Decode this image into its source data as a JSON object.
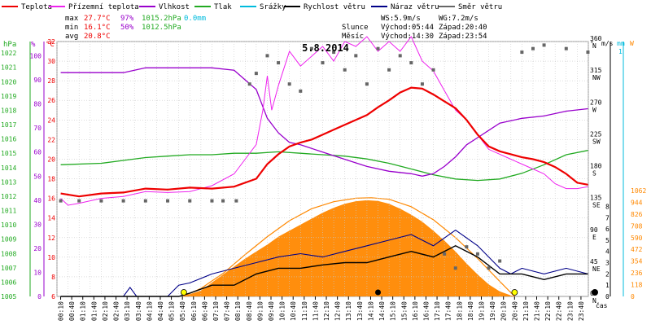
{
  "chart_data": {
    "type": "line",
    "title": "5.8.2014",
    "legend": [
      {
        "name": "Teplota",
        "color": "#ee0000"
      },
      {
        "name": "Přízemní teplota",
        "color": "#ee22ee"
      },
      {
        "name": "Vlhkost",
        "color": "#9900cc"
      },
      {
        "name": "Tlak",
        "color": "#22aa22"
      },
      {
        "name": "Srážky",
        "color": "#00bbdd"
      },
      {
        "name": "Rychlost větru",
        "color": "#000000"
      },
      {
        "name": "Náraz větru",
        "color": "#000088"
      },
      {
        "name": "Směr větru",
        "color": "#666666"
      }
    ],
    "stats": {
      "max": {
        "label": "max",
        "temp": "27.7°C",
        "hum": "97%",
        "press": "1015.2hPa",
        "rain": "0.0mm"
      },
      "min": {
        "label": "min",
        "temp": "16.1°C",
        "hum": "50%",
        "press": "1012.5hPa"
      },
      "avg": {
        "label": "avg",
        "temp": "20.8°C"
      }
    },
    "wind_info": {
      "ws": "WS:5.9m/s",
      "wg": "WG:7.2m/s"
    },
    "sun": {
      "label": "Slunce",
      "rise": "Východ:05:44",
      "set": "Západ:20:40"
    },
    "moon": {
      "label": "Měsíc",
      "rise": "Východ:14:30",
      "set": "Západ:23:54"
    },
    "axes": {
      "hpa": {
        "unit": "hPa",
        "color": "#22aa22",
        "ticks": [
          "1005",
          "1006",
          "1007",
          "1008",
          "1009",
          "1010",
          "1011",
          "1012",
          "1013",
          "1014",
          "1015",
          "1016",
          "1017",
          "1018",
          "1019",
          "1020",
          "1021",
          "1022"
        ]
      },
      "pct": {
        "unit": "%",
        "color": "#9900cc",
        "ticks": [
          "0",
          "10",
          "20",
          "30",
          "40",
          "50",
          "60",
          "70",
          "80",
          "90",
          "100"
        ]
      },
      "temp": {
        "unit": "°C",
        "color": "#ee0000",
        "ticks": [
          "6",
          "8",
          "10",
          "12",
          "14",
          "16",
          "18",
          "20",
          "22",
          "24",
          "26",
          "28",
          "30",
          "32"
        ]
      },
      "dir": {
        "unit": "°",
        "ticks": [
          "0 N",
          "45 NE",
          "90 E",
          "135 SE",
          "180 S",
          "225 SW",
          "270 W",
          "315 NW",
          "360 N"
        ]
      },
      "ms": {
        "unit": "m/s",
        "ticks": [
          "0",
          "1",
          "2",
          "3",
          "4",
          "5",
          "6",
          "7",
          "8"
        ]
      },
      "mm": {
        "unit": "mm",
        "color": "#00bbdd",
        "top_tick": "1"
      },
      "wm2": {
        "unit": "W",
        "color": "#ff8800",
        "ticks": [
          "0",
          "118",
          "236",
          "354",
          "472",
          "590",
          "708",
          "826",
          "944",
          "1062"
        ]
      },
      "x": {
        "label": "čas",
        "ticks": [
          "00:10",
          "00:40",
          "01:10",
          "01:40",
          "02:10",
          "02:40",
          "03:10",
          "03:40",
          "04:10",
          "04:40",
          "05:10",
          "05:40",
          "06:10",
          "06:40",
          "07:10",
          "07:40",
          "08:10",
          "08:40",
          "09:10",
          "09:40",
          "10:10",
          "10:40",
          "11:10",
          "11:40",
          "12:10",
          "12:40",
          "13:10",
          "13:40",
          "14:10",
          "14:40",
          "15:10",
          "15:40",
          "16:10",
          "16:40",
          "17:10",
          "17:40",
          "18:10",
          "18:40",
          "19:10",
          "19:40",
          "20:10",
          "20:40",
          "21:10",
          "21:40",
          "22:10",
          "22:40",
          "23:10",
          "23:40"
        ]
      }
    },
    "series": {
      "temperature": [
        [
          0.17,
          16.5
        ],
        [
          1,
          16.2
        ],
        [
          2,
          16.5
        ],
        [
          3,
          16.6
        ],
        [
          4,
          17.0
        ],
        [
          5,
          16.9
        ],
        [
          6,
          17.1
        ],
        [
          7,
          17.0
        ],
        [
          8,
          17.2
        ],
        [
          9,
          18.0
        ],
        [
          9.5,
          19.5
        ],
        [
          10,
          20.5
        ],
        [
          10.5,
          21.3
        ],
        [
          11,
          21.7
        ],
        [
          11.5,
          22.0
        ],
        [
          12,
          22.5
        ],
        [
          12.5,
          23.0
        ],
        [
          13,
          23.5
        ],
        [
          13.5,
          24.0
        ],
        [
          14,
          24.5
        ],
        [
          14.5,
          25.3
        ],
        [
          15,
          26.0
        ],
        [
          15.5,
          26.8
        ],
        [
          16,
          27.3
        ],
        [
          16.5,
          27.2
        ],
        [
          17,
          26.6
        ],
        [
          17.5,
          25.9
        ],
        [
          18,
          25.2
        ],
        [
          18.5,
          24.0
        ],
        [
          19,
          22.5
        ],
        [
          19.5,
          21.3
        ],
        [
          20,
          20.8
        ],
        [
          20.5,
          20.5
        ],
        [
          21,
          20.2
        ],
        [
          21.5,
          20.0
        ],
        [
          22,
          19.7
        ],
        [
          22.5,
          19.2
        ],
        [
          23,
          18.5
        ],
        [
          23.5,
          17.6
        ],
        [
          23.98,
          17.4
        ]
      ],
      "ground_temperature": [
        [
          0.17,
          16.0
        ],
        [
          0.5,
          15.3
        ],
        [
          1,
          15.5
        ],
        [
          2,
          16.0
        ],
        [
          3,
          16.2
        ],
        [
          4,
          16.7
        ],
        [
          5,
          16.6
        ],
        [
          6,
          16.7
        ],
        [
          7,
          17.3
        ],
        [
          8,
          18.5
        ],
        [
          8.5,
          20.0
        ],
        [
          9,
          21.5
        ],
        [
          9.3,
          25.0
        ],
        [
          9.5,
          28.5
        ],
        [
          9.7,
          25.0
        ],
        [
          10,
          27.5
        ],
        [
          10.5,
          31.0
        ],
        [
          11,
          29.5
        ],
        [
          11.5,
          30.5
        ],
        [
          12,
          31.5
        ],
        [
          12.5,
          30.0
        ],
        [
          13,
          32.0
        ],
        [
          13.5,
          31.5
        ],
        [
          14,
          32.5
        ],
        [
          14.5,
          31.0
        ],
        [
          15,
          32.0
        ],
        [
          15.5,
          31.0
        ],
        [
          16,
          32.5
        ],
        [
          16.5,
          30.0
        ],
        [
          17,
          29.0
        ],
        [
          17.5,
          27.0
        ],
        [
          18,
          25.0
        ],
        [
          18.5,
          24.0
        ],
        [
          19,
          22.5
        ],
        [
          19.5,
          21.0
        ],
        [
          20,
          20.5
        ],
        [
          20.5,
          20.0
        ],
        [
          21,
          19.5
        ],
        [
          21.5,
          19.0
        ],
        [
          22,
          18.5
        ],
        [
          22.5,
          17.5
        ],
        [
          23,
          17.0
        ],
        [
          23.5,
          17.0
        ],
        [
          23.98,
          17.2
        ]
      ],
      "humidity": [
        [
          0.17,
          93
        ],
        [
          3,
          93
        ],
        [
          4,
          95
        ],
        [
          7,
          95
        ],
        [
          8,
          94
        ],
        [
          8.5,
          90
        ],
        [
          9,
          86
        ],
        [
          9.5,
          74
        ],
        [
          10,
          68
        ],
        [
          10.5,
          64
        ],
        [
          11,
          63
        ],
        [
          12,
          60
        ],
        [
          13,
          57
        ],
        [
          14,
          54
        ],
        [
          15,
          52
        ],
        [
          16,
          51
        ],
        [
          16.5,
          50
        ],
        [
          17,
          51
        ],
        [
          17.5,
          54
        ],
        [
          18,
          58
        ],
        [
          18.5,
          63
        ],
        [
          19,
          66
        ],
        [
          19.5,
          69
        ],
        [
          20,
          72
        ],
        [
          20.5,
          73
        ],
        [
          21,
          74
        ],
        [
          22,
          75
        ],
        [
          23,
          77
        ],
        [
          23.98,
          78
        ]
      ],
      "pressure": [
        [
          0.17,
          1014.2
        ],
        [
          2,
          1014.3
        ],
        [
          3,
          1014.5
        ],
        [
          4,
          1014.7
        ],
        [
          5,
          1014.8
        ],
        [
          6,
          1014.9
        ],
        [
          7,
          1014.9
        ],
        [
          8,
          1015.0
        ],
        [
          9,
          1015.0
        ],
        [
          10,
          1015.1
        ],
        [
          11,
          1015.0
        ],
        [
          12,
          1014.9
        ],
        [
          13,
          1014.8
        ],
        [
          14,
          1014.6
        ],
        [
          15,
          1014.3
        ],
        [
          16,
          1013.9
        ],
        [
          17,
          1013.5
        ],
        [
          18,
          1013.2
        ],
        [
          19,
          1013.1
        ],
        [
          20,
          1013.2
        ],
        [
          21,
          1013.6
        ],
        [
          22,
          1014.2
        ],
        [
          23,
          1014.9
        ],
        [
          23.98,
          1015.2
        ]
      ],
      "wind_speed": [
        [
          0.17,
          0
        ],
        [
          5.5,
          0
        ],
        [
          6,
          0.3
        ],
        [
          7,
          1.0
        ],
        [
          8,
          1.0
        ],
        [
          9,
          2.0
        ],
        [
          10,
          2.5
        ],
        [
          11,
          2.5
        ],
        [
          12,
          2.8
        ],
        [
          13,
          3.0
        ],
        [
          14,
          3.0
        ],
        [
          15,
          3.5
        ],
        [
          16,
          4.0
        ],
        [
          17,
          3.5
        ],
        [
          18,
          4.5
        ],
        [
          19,
          3.5
        ],
        [
          20,
          2.0
        ],
        [
          21,
          2.0
        ],
        [
          22,
          1.5
        ],
        [
          23,
          2.0
        ],
        [
          23.98,
          2.0
        ]
      ],
      "wind_gust": [
        [
          0.17,
          0
        ],
        [
          3,
          0
        ],
        [
          3.3,
          0.8
        ],
        [
          3.6,
          0
        ],
        [
          5,
          0
        ],
        [
          5.5,
          1.0
        ],
        [
          6,
          1.2
        ],
        [
          7,
          2.0
        ],
        [
          8,
          2.5
        ],
        [
          9,
          3.0
        ],
        [
          10,
          3.5
        ],
        [
          11,
          3.8
        ],
        [
          12,
          3.5
        ],
        [
          13,
          4.0
        ],
        [
          14,
          4.5
        ],
        [
          15,
          5.0
        ],
        [
          16,
          5.5
        ],
        [
          17,
          4.5
        ],
        [
          18,
          5.9
        ],
        [
          19,
          4.5
        ],
        [
          19.5,
          3.5
        ],
        [
          20,
          2.5
        ],
        [
          20.5,
          2.0
        ],
        [
          21,
          2.5
        ],
        [
          22,
          2.0
        ],
        [
          23,
          2.5
        ],
        [
          23.98,
          2.0
        ]
      ],
      "solar_radiation": [
        [
          5.7,
          0
        ],
        [
          6.5,
          60
        ],
        [
          7,
          140
        ],
        [
          7.5,
          220
        ],
        [
          8,
          300
        ],
        [
          8.5,
          380
        ],
        [
          9,
          450
        ],
        [
          9.5,
          520
        ],
        [
          10,
          600
        ],
        [
          10.5,
          660
        ],
        [
          11,
          720
        ],
        [
          11.5,
          780
        ],
        [
          12,
          840
        ],
        [
          12.5,
          890
        ],
        [
          13,
          930
        ],
        [
          13.5,
          955
        ],
        [
          14,
          965
        ],
        [
          14.5,
          958
        ],
        [
          15,
          930
        ],
        [
          15.5,
          880
        ],
        [
          16,
          820
        ],
        [
          16.5,
          750
        ],
        [
          17,
          660
        ],
        [
          17.5,
          560
        ],
        [
          18,
          450
        ],
        [
          18.5,
          330
        ],
        [
          19,
          220
        ],
        [
          19.5,
          120
        ],
        [
          20,
          50
        ],
        [
          20.5,
          10
        ],
        [
          20.67,
          0
        ]
      ],
      "solar_max": [
        [
          5.7,
          0
        ],
        [
          6.5,
          80
        ],
        [
          7.5,
          230
        ],
        [
          8.5,
          420
        ],
        [
          9.5,
          600
        ],
        [
          10.5,
          760
        ],
        [
          11.5,
          880
        ],
        [
          12.5,
          950
        ],
        [
          13.5,
          985
        ],
        [
          14.2,
          990
        ],
        [
          15,
          975
        ],
        [
          16,
          900
        ],
        [
          17,
          770
        ],
        [
          18,
          590
        ],
        [
          19,
          380
        ],
        [
          20,
          150
        ],
        [
          20.67,
          0
        ]
      ],
      "wind_direction": [
        [
          0.17,
          135
        ],
        [
          1,
          135
        ],
        [
          2,
          135
        ],
        [
          3,
          135
        ],
        [
          4,
          135
        ],
        [
          5,
          135
        ],
        [
          6,
          135
        ],
        [
          7,
          135
        ],
        [
          7.5,
          135
        ],
        [
          8.1,
          135
        ],
        [
          8.7,
          300
        ],
        [
          9,
          315
        ],
        [
          9.5,
          340
        ],
        [
          10,
          330
        ],
        [
          10.5,
          300
        ],
        [
          11,
          290
        ],
        [
          11.5,
          350
        ],
        [
          12,
          330
        ],
        [
          12.5,
          345
        ],
        [
          13,
          320
        ],
        [
          13.5,
          340
        ],
        [
          14,
          300
        ],
        [
          14.5,
          350
        ],
        [
          15,
          320
        ],
        [
          15.5,
          340
        ],
        [
          16,
          330
        ],
        [
          16.5,
          300
        ],
        [
          17,
          320
        ],
        [
          17.5,
          60
        ],
        [
          18,
          40
        ],
        [
          18.5,
          70
        ],
        [
          19,
          60
        ],
        [
          19.5,
          40
        ],
        [
          20,
          50
        ],
        [
          21,
          345
        ],
        [
          21.5,
          350
        ],
        [
          22,
          355
        ],
        [
          23,
          350
        ],
        [
          23.98,
          345
        ]
      ],
      "moon_marker": {
        "x": 14.5
      },
      "sun_markers": [
        {
          "x": 5.73
        },
        {
          "x": 20.67
        }
      ]
    }
  }
}
